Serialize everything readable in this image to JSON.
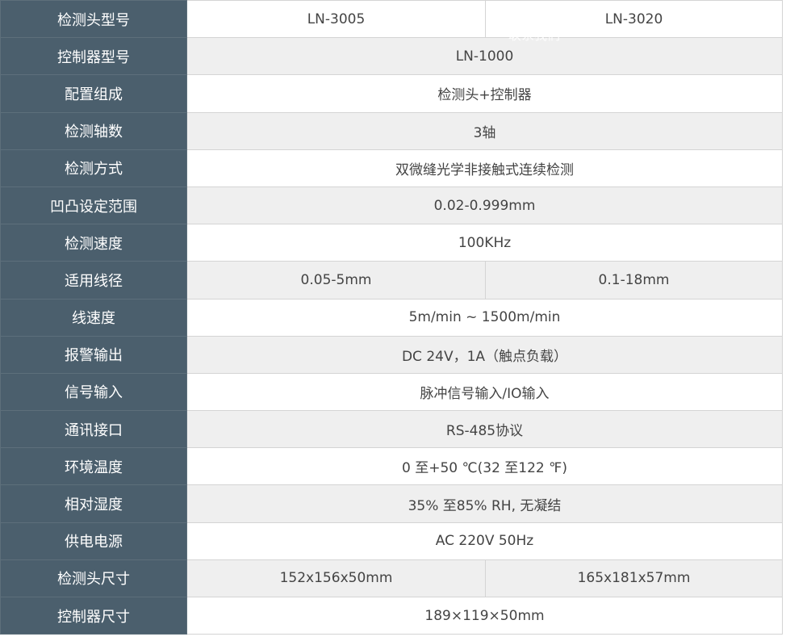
{
  "rows": [
    {
      "label": "检测头型号",
      "values": [
        "LN-3005",
        "LN-3020"
      ]
    },
    {
      "label": "控制器型号",
      "values": [
        "LN-1000"
      ]
    },
    {
      "label": "配置组成",
      "values": [
        "检测头+控制器"
      ]
    },
    {
      "label": "检测轴数",
      "values": [
        "3轴"
      ]
    },
    {
      "label": "检测方式",
      "values": [
        "双微缝光学非接触式连续检测"
      ]
    },
    {
      "label": "凹凸设定范围",
      "values": [
        "0.02-0.999mm"
      ]
    },
    {
      "label": "检测速度",
      "values": [
        "100KHz"
      ]
    },
    {
      "label": "适用线径",
      "values": [
        "0.05-5mm",
        "0.1-18mm"
      ]
    },
    {
      "label": "线速度",
      "values": [
        "5m/min ~ 1500m/min"
      ]
    },
    {
      "label": "报警输出",
      "values": [
        "DC 24V，1A（触点负载）"
      ]
    },
    {
      "label": "信号输入",
      "values": [
        "脉冲信号输入/IO输入"
      ]
    },
    {
      "label": "通讯接口",
      "values": [
        "RS-485协议"
      ]
    },
    {
      "label": "环境温度",
      "values": [
        "0 至+50 ℃(32 至122 ℉)"
      ]
    },
    {
      "label": "相对湿度",
      "values": [
        "35% 至85% RH, 无凝结"
      ]
    },
    {
      "label": "供电电源",
      "values": [
        "AC 220V 50Hz"
      ]
    },
    {
      "label": "检测头尺寸",
      "values": [
        "152x156x50mm",
        "165x181x57mm"
      ]
    },
    {
      "label": "控制器尺寸",
      "values": [
        "189×119×50mm"
      ]
    }
  ],
  "watermark": "联系我们",
  "colors": {
    "label_bg": "#4b5f6d",
    "alt_row_bg": "#efefef"
  }
}
